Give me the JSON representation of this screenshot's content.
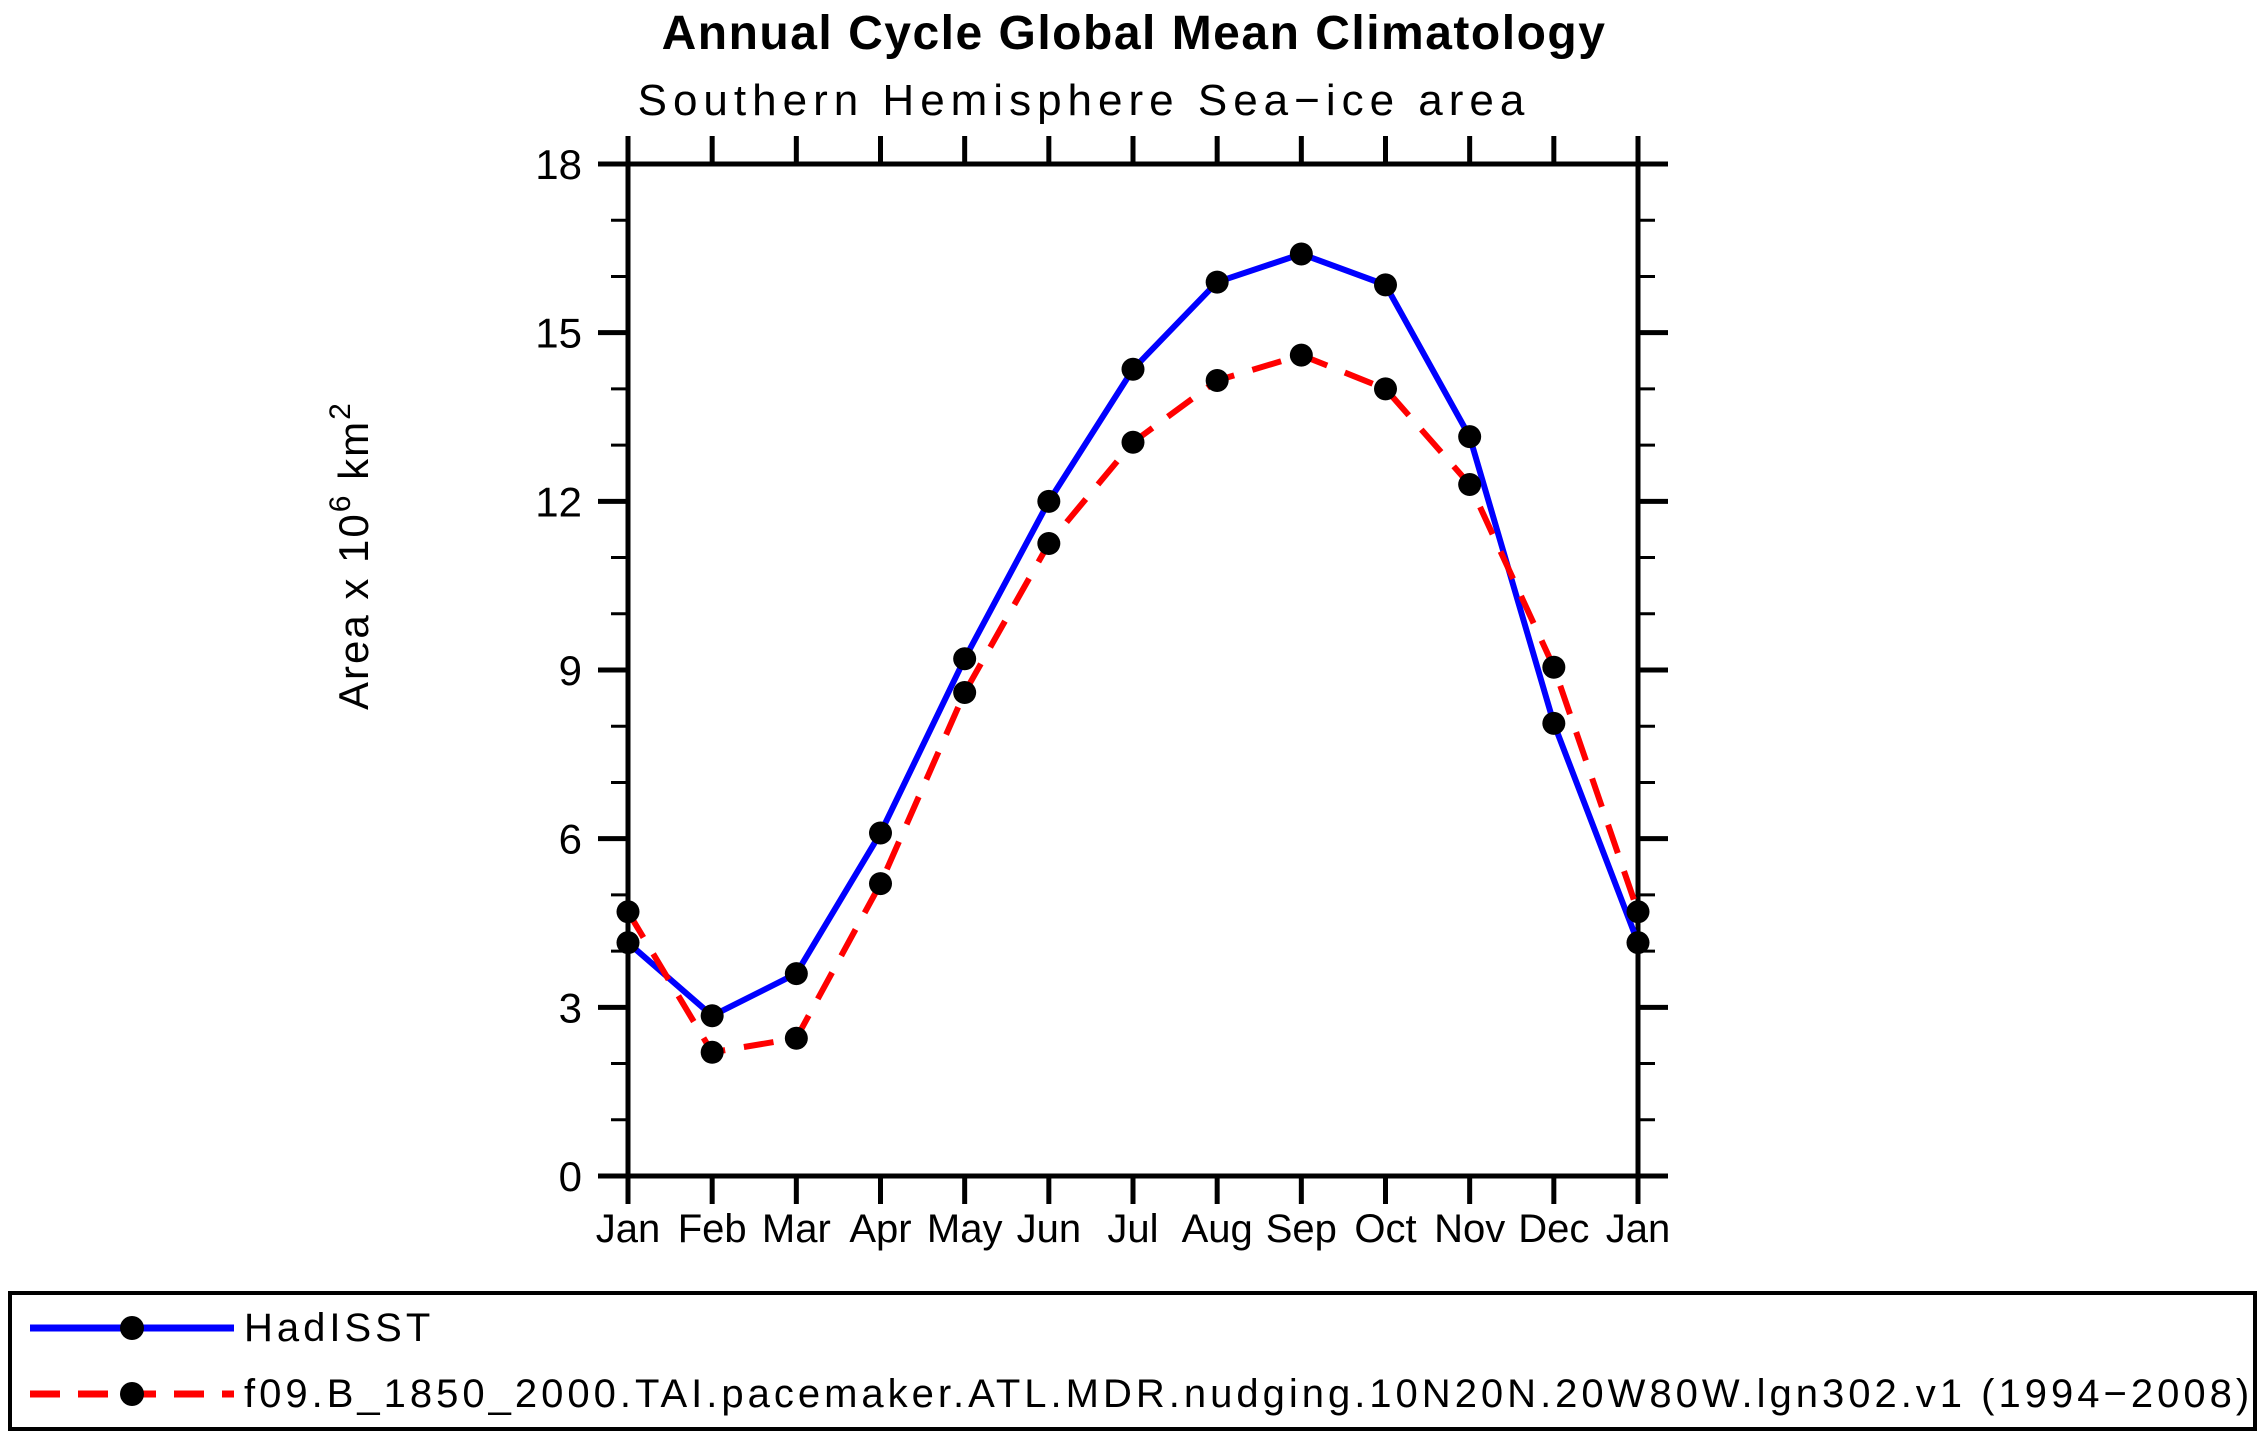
{
  "title": "Annual Cycle Global Mean Climatology",
  "subtitle": "Southern Hemisphere Sea−ice area",
  "ylabel_parts": {
    "base1": "Area x 10",
    "sup1": "6",
    "base2": " km",
    "sup2": "2"
  },
  "chart_data": {
    "type": "line",
    "title": "Annual Cycle Global Mean Climatology",
    "subtitle": "Southern Hemisphere Sea−ice area",
    "categories": [
      "Jan",
      "Feb",
      "Mar",
      "Apr",
      "May",
      "Jun",
      "Jul",
      "Aug",
      "Sep",
      "Oct",
      "Nov",
      "Dec",
      "Jan"
    ],
    "ylabel": "Area x 10^6 km^2",
    "ylim": [
      0,
      18
    ],
    "ytick_major": [
      0,
      3,
      6,
      9,
      12,
      15,
      18
    ],
    "ytick_minor_step": 1,
    "grid": false,
    "legend_position": "bottom",
    "axis_color": "#000000",
    "series": [
      {
        "name": "HadISST",
        "color": "#0000ff",
        "line_style": "solid",
        "marker": "filled-circle",
        "marker_color": "#000000",
        "values": [
          4.15,
          2.85,
          3.6,
          6.1,
          9.2,
          12.0,
          14.35,
          15.9,
          16.4,
          15.85,
          13.15,
          8.05,
          4.15
        ]
      },
      {
        "name": "f09.B_1850_2000.TAI.pacemaker.ATL.MDR.nudging.10N20N.20W80W.lgn302.v1 (1994−2008)",
        "color": "#ff0000",
        "line_style": "dashed",
        "marker": "filled-circle",
        "marker_color": "#000000",
        "values": [
          4.7,
          2.2,
          2.45,
          5.2,
          8.6,
          11.25,
          13.05,
          14.15,
          14.6,
          14.0,
          12.3,
          9.05,
          4.7
        ]
      }
    ]
  }
}
